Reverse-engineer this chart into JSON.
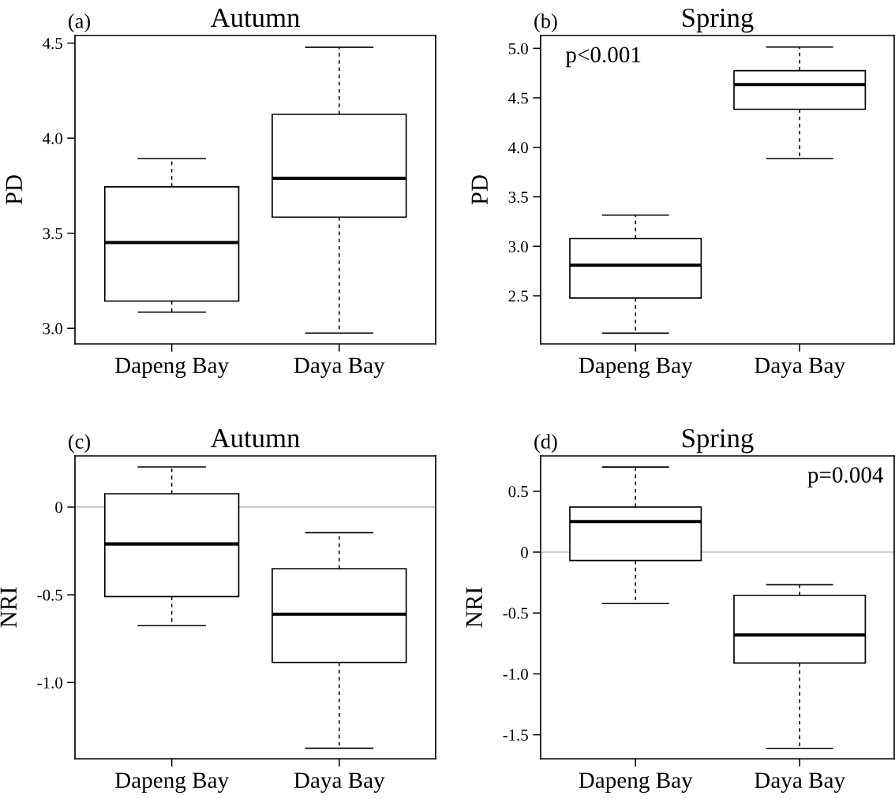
{
  "chart_data": [
    {
      "type": "box",
      "title": "Autumn",
      "ylabel": "PD",
      "categories": [
        "Dapeng Bay",
        "Daya Bay"
      ],
      "ylim": [
        2.918,
        4.54
      ],
      "yticks": [
        {
          "value": 3.0,
          "label": "3.0"
        },
        {
          "value": 3.5,
          "label": "3.5"
        },
        {
          "value": 4.0,
          "label": "4.0"
        },
        {
          "value": 4.5,
          "label": "4.5"
        }
      ],
      "boxes": [
        {
          "low": 3.085,
          "q1": 3.143,
          "median": 3.451,
          "q3": 3.744,
          "high": 3.893
        },
        {
          "low": 2.975,
          "q1": 3.585,
          "median": 3.789,
          "q3": 4.125,
          "high": 4.478
        }
      ],
      "annotations": [
        "(a)"
      ]
    },
    {
      "type": "box",
      "title": "Spring",
      "ylabel": "PD",
      "categories": [
        "Dapeng Bay",
        "Daya Bay"
      ],
      "ylim": [
        2.014,
        5.13
      ],
      "yticks": [
        {
          "value": 2.5,
          "label": "2.5"
        },
        {
          "value": 3.0,
          "label": "3.0"
        },
        {
          "value": 3.5,
          "label": "3.5"
        },
        {
          "value": 4.0,
          "label": "4.0"
        },
        {
          "value": 4.5,
          "label": "4.5"
        },
        {
          "value": 5.0,
          "label": "5.0"
        }
      ],
      "boxes": [
        {
          "low": 2.122,
          "q1": 2.477,
          "median": 2.809,
          "q3": 3.078,
          "high": 3.315
        },
        {
          "low": 3.887,
          "q1": 4.385,
          "median": 4.634,
          "q3": 4.774,
          "high": 5.014
        }
      ],
      "annotations": [
        "(b)",
        "p<0.001"
      ]
    },
    {
      "type": "box",
      "title": "Autumn",
      "ylabel": "NRI",
      "categories": [
        "Dapeng Bay",
        "Daya Bay"
      ],
      "ylim": [
        -1.435,
        0.292
      ],
      "yticks": [
        {
          "value": -1.0,
          "label": "-1.0"
        },
        {
          "value": -0.5,
          "label": "-0.5"
        },
        0
      ],
      "boxes": [
        {
          "low": -0.676,
          "q1": -0.51,
          "median": -0.21,
          "q3": 0.076,
          "high": 0.229
        },
        {
          "low": -1.375,
          "q1": -0.886,
          "median": -0.611,
          "q3": -0.351,
          "high": -0.146
        }
      ],
      "ref_lines": [
        {
          "axis": "y",
          "value": 0,
          "color": "#c0c0c0"
        }
      ],
      "annotations": [
        "(c)"
      ]
    },
    {
      "type": "box",
      "title": "Spring",
      "ylabel": "NRI",
      "categories": [
        "Dapeng Bay",
        "Daya Bay"
      ],
      "ylim": [
        -1.697,
        0.79
      ],
      "yticks": [
        {
          "value": -1.5,
          "label": "-1.5"
        },
        {
          "value": -1.0,
          "label": "-1.0"
        },
        {
          "value": -0.5,
          "label": "-0.5"
        },
        0,
        {
          "value": 0.5,
          "label": "0.5"
        }
      ],
      "boxes": [
        {
          "low": -0.423,
          "q1": -0.069,
          "median": 0.251,
          "q3": 0.37,
          "high": 0.699
        },
        {
          "low": -1.611,
          "q1": -0.911,
          "median": -0.68,
          "q3": -0.355,
          "high": -0.268
        }
      ],
      "ref_lines": [
        {
          "axis": "y",
          "value": 0,
          "color": "#c0c0c0"
        }
      ],
      "annotations": [
        "(d)",
        "p=0.004"
      ]
    }
  ]
}
